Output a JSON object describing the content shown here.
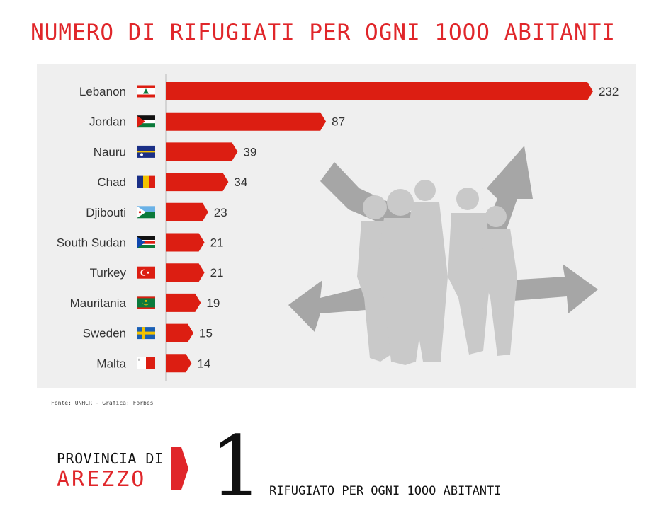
{
  "header": {
    "title": "NUMERO DI RIFUGIATI PER OGNI 1OOO ABITANTI"
  },
  "source": "Fonte: UNHCR - Grafica: Forbes",
  "footer": {
    "province_line1": "PROVINCIA DI",
    "province_line2": "AREZZO",
    "big_number": "1",
    "tagline": "RIFUGIATO PER OGNI 1OOO ABITANTI"
  },
  "colors": {
    "accent": "#e0262a",
    "bar": "#dc1e12",
    "panel": "#efefef",
    "silhouette": "#c9c9c9",
    "arrow": "#a6a6a6"
  },
  "chart_data": {
    "type": "bar",
    "orientation": "horizontal",
    "categories": [
      "Lebanon",
      "Jordan",
      "Nauru",
      "Chad",
      "Djibouti",
      "South Sudan",
      "Turkey",
      "Mauritania",
      "Sweden",
      "Malta"
    ],
    "values": [
      232,
      87,
      39,
      34,
      23,
      21,
      21,
      19,
      15,
      14
    ],
    "data_labels": [
      "232",
      "87",
      "39",
      "34",
      "23",
      "21",
      "21",
      "19",
      "15",
      "14"
    ],
    "flags": [
      "lebanon-flag-icon",
      "jordan-flag-icon",
      "nauru-flag-icon",
      "chad-flag-icon",
      "djibouti-flag-icon",
      "south-sudan-flag-icon",
      "turkey-flag-icon",
      "mauritania-flag-icon",
      "sweden-flag-icon",
      "malta-flag-icon"
    ],
    "title": "NUMERO DI RIFUGIATI PER OGNI 1OOO ABITANTI",
    "xlabel": "",
    "ylabel": "",
    "xlim": [
      0,
      232
    ],
    "grid": false,
    "legend": "none"
  }
}
